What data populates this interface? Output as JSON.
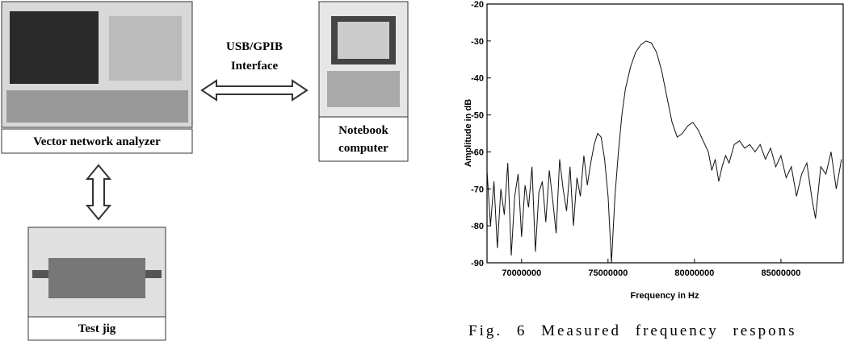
{
  "diagram": {
    "nodes": [
      {
        "label": "Vector network analyzer"
      },
      {
        "label_lines": [
          "Notebook",
          "computer"
        ]
      },
      {
        "label": "Test jig"
      }
    ],
    "edges": [
      {
        "label_lines": [
          "USB/GPIB",
          "Interface"
        ]
      }
    ]
  },
  "chart_data": {
    "type": "line",
    "xlabel": "Frequency in Hz",
    "ylabel": "Amplitude in dB",
    "color": "#111111",
    "xlim": [
      68000000,
      88600000
    ],
    "ylim": [
      -90,
      -20
    ],
    "xticks": [
      70000000,
      75000000,
      80000000,
      85000000
    ],
    "yticks": [
      -90,
      -80,
      -70,
      -60,
      -50,
      -40,
      -30,
      -20
    ],
    "x": [
      68000000,
      68200000,
      68400000,
      68600000,
      68800000,
      69000000,
      69200000,
      69400000,
      69600000,
      69800000,
      70000000,
      70200000,
      70400000,
      70600000,
      70800000,
      71000000,
      71200000,
      71400000,
      71600000,
      71800000,
      72000000,
      72200000,
      72400000,
      72600000,
      72800000,
      73000000,
      73200000,
      73400000,
      73600000,
      73800000,
      74000000,
      74200000,
      74400000,
      74600000,
      74800000,
      75000000,
      75200000,
      75400000,
      75600000,
      75800000,
      76000000,
      76300000,
      76600000,
      76900000,
      77200000,
      77500000,
      77800000,
      78100000,
      78400000,
      78700000,
      79000000,
      79300000,
      79600000,
      79900000,
      80200000,
      80500000,
      80800000,
      81000000,
      81200000,
      81400000,
      81600000,
      81800000,
      82000000,
      82300000,
      82600000,
      82900000,
      83200000,
      83500000,
      83800000,
      84100000,
      84400000,
      84700000,
      85000000,
      85300000,
      85600000,
      85900000,
      86200000,
      86500000,
      86800000,
      87000000,
      87300000,
      87600000,
      87900000,
      88200000,
      88500000
    ],
    "values": [
      -65,
      -80,
      -68,
      -86,
      -70,
      -77,
      -63,
      -88,
      -72,
      -66,
      -83,
      -69,
      -75,
      -64,
      -87,
      -71,
      -68,
      -79,
      -65,
      -73,
      -82,
      -62,
      -70,
      -76,
      -64,
      -80,
      -67,
      -72,
      -61,
      -69,
      -63,
      -58,
      -55,
      -56,
      -62,
      -72,
      -90,
      -72,
      -60,
      -50,
      -43,
      -37,
      -33,
      -31,
      -30,
      -30.5,
      -33,
      -38,
      -45,
      -52,
      -56,
      -55,
      -53,
      -52,
      -54,
      -57,
      -60,
      -65,
      -62,
      -68,
      -64,
      -61,
      -63,
      -58,
      -57,
      -59,
      -58,
      -60,
      -58,
      -62,
      -59,
      -64,
      -61,
      -67,
      -64,
      -72,
      -66,
      -63,
      -73,
      -78,
      -64,
      -66,
      -60,
      -70,
      -62
    ]
  },
  "caption": "Fig. 6 Measured frequency respons"
}
